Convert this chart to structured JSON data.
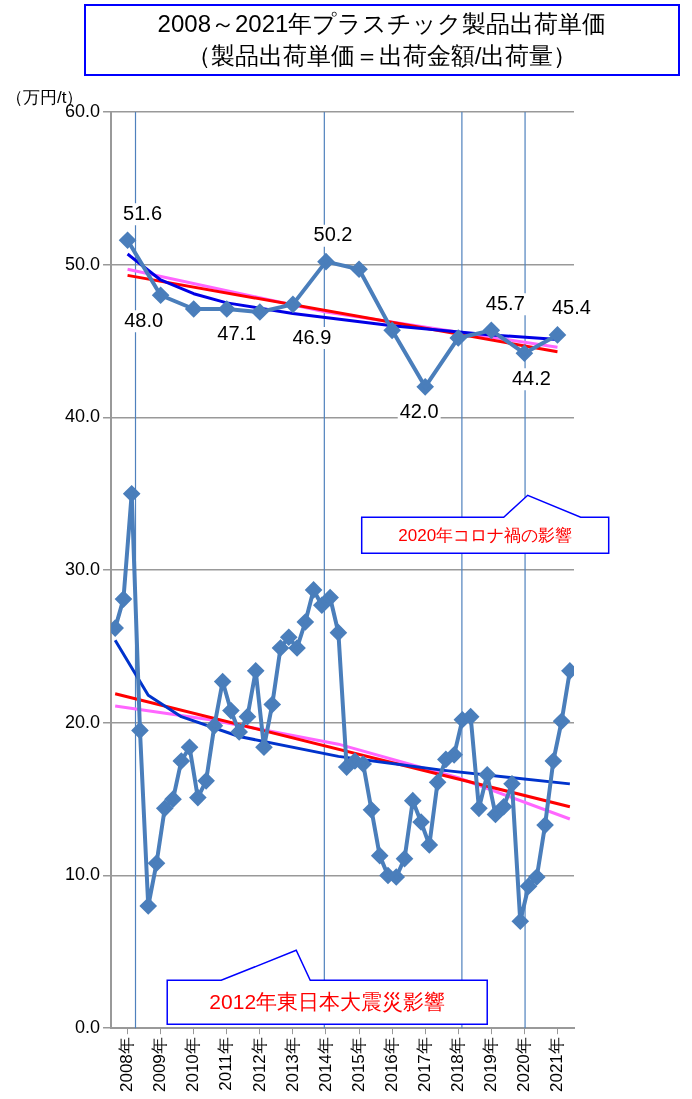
{
  "chart_data": {
    "type": "line",
    "title": "2008～2021年プラスチック製品出荷単価",
    "subtitle": "（製品出荷単価＝出荷金額/出荷量）",
    "ylabel": "（万円/t）",
    "xlim": [
      2008,
      2022
    ],
    "xticks": [
      {
        "value": 2008.5,
        "label": "2008年"
      },
      {
        "value": 2009.5,
        "label": "2009年"
      },
      {
        "value": 2010.5,
        "label": "2010年"
      },
      {
        "value": 2011.5,
        "label": "2011年"
      },
      {
        "value": 2012.5,
        "label": "2012年"
      },
      {
        "value": 2013.5,
        "label": "2013年"
      },
      {
        "value": 2014.5,
        "label": "2014年"
      },
      {
        "value": 2015.5,
        "label": "2015年"
      },
      {
        "value": 2016.5,
        "label": "2016年"
      },
      {
        "value": 2017.5,
        "label": "2017年"
      },
      {
        "value": 2018.5,
        "label": "2018年"
      },
      {
        "value": 2019.5,
        "label": "2019年"
      },
      {
        "value": 2020.5,
        "label": "2020年"
      },
      {
        "value": 2021.5,
        "label": "2021年"
      }
    ],
    "ylim": [
      0,
      60
    ],
    "yticks": [
      {
        "value": 0,
        "label": "0.0"
      },
      {
        "value": 10,
        "label": "10.0"
      },
      {
        "value": 20,
        "label": "20.0"
      },
      {
        "value": 30,
        "label": "30.0"
      },
      {
        "value": 40,
        "label": "40.0"
      },
      {
        "value": 50,
        "label": "50.0"
      },
      {
        "value": 60,
        "label": "60.0"
      }
    ],
    "grid": "y",
    "series": [
      {
        "color": "#4a7ebb",
        "marker": "diamond",
        "x": [
          2008.5,
          2009.5,
          2010.5,
          2011.5,
          2012.5,
          2013.5,
          2014.5,
          2015.5,
          2016.5,
          2017.5,
          2018.5,
          2019.5,
          2020.5,
          2021.5
        ],
        "values": [
          51.6,
          48.0,
          47.1,
          47.1,
          46.9,
          47.4,
          50.2,
          49.7,
          45.7,
          42.0,
          45.2,
          45.7,
          44.2,
          45.4
        ],
        "value_labels": [
          "51.6",
          "48.0",
          null,
          "47.1",
          "46.9",
          null,
          "50.2",
          null,
          null,
          "42.0",
          null,
          "45.7",
          "44.2",
          "45.4"
        ]
      },
      {
        "color": "#4a7ebb",
        "marker": "diamond",
        "x": [
          2008.125,
          2008.375,
          2008.625,
          2008.875,
          2009.125,
          2009.375,
          2009.625,
          2009.875,
          2010.125,
          2010.375,
          2010.625,
          2010.875,
          2011.125,
          2011.375,
          2011.625,
          2011.875,
          2012.125,
          2012.375,
          2012.625,
          2012.875,
          2013.125,
          2013.375,
          2013.625,
          2013.875,
          2014.125,
          2014.375,
          2014.625,
          2014.875,
          2015.125,
          2015.375,
          2015.625,
          2015.875,
          2016.125,
          2016.375,
          2016.625,
          2016.875,
          2017.125,
          2017.375,
          2017.625,
          2017.875,
          2018.125,
          2018.375,
          2018.625,
          2018.875,
          2019.125,
          2019.375,
          2019.625,
          2019.875,
          2020.125,
          2020.375,
          2020.625,
          2020.875,
          2021.125,
          2021.375,
          2021.625,
          2021.875
        ],
        "values": [
          26.2,
          28.1,
          35.0,
          19.5,
          8.0,
          10.8,
          14.4,
          15.0,
          17.5,
          18.4,
          15.1,
          16.2,
          19.8,
          22.7,
          20.8,
          19.4,
          20.4,
          23.4,
          18.4,
          21.2,
          24.9,
          25.6,
          24.9,
          26.6,
          28.7,
          27.7,
          28.2,
          25.9,
          17.1,
          17.5,
          17.3,
          14.3,
          11.3,
          10.0,
          9.9,
          11.1,
          14.9,
          13.5,
          12.0,
          16.1,
          17.6,
          17.9,
          20.2,
          20.4,
          14.4,
          16.6,
          14.0,
          14.5,
          16.0,
          7.0,
          9.3,
          9.9,
          13.3,
          17.5,
          20.1,
          23.4
        ]
      },
      {
        "color": "#0000e6",
        "marker": "none",
        "x": [
          2008.5,
          2009.5,
          2010.5,
          2011.5,
          2013.5,
          2016.5,
          2019.5,
          2021.5
        ],
        "values": [
          50.7,
          49.0,
          48.1,
          47.5,
          46.8,
          46.0,
          45.4,
          45.1
        ]
      },
      {
        "color": "#ff0000",
        "marker": "none",
        "x": [
          2008.5,
          2021.5
        ],
        "values": [
          49.3,
          44.3
        ]
      },
      {
        "color": "#ff66ff",
        "marker": "none",
        "x": [
          2008.5,
          2014.5,
          2021.5
        ],
        "values": [
          49.7,
          46.9,
          44.6
        ]
      },
      {
        "color": "#0033cc",
        "marker": "none",
        "x": [
          2008.125,
          2009.125,
          2010.125,
          2011.875,
          2014.875,
          2018.0,
          2021.875
        ],
        "values": [
          25.4,
          21.8,
          20.4,
          19.1,
          17.8,
          16.9,
          16.0
        ]
      },
      {
        "color": "#ff0000",
        "marker": "none",
        "x": [
          2008.125,
          2021.875
        ],
        "values": [
          21.9,
          14.5
        ]
      },
      {
        "color": "#ff66ff",
        "marker": "none",
        "x": [
          2008.125,
          2011.0,
          2014.875,
          2018.5,
          2021.875
        ],
        "values": [
          21.1,
          20.2,
          18.6,
          16.4,
          13.7
        ]
      }
    ],
    "ref_lines": [
      {
        "axis": "x",
        "value": 2008.74,
        "color": "#4f81bd"
      },
      {
        "axis": "x",
        "value": 2014.45,
        "color": "#4f81bd"
      },
      {
        "axis": "x",
        "value": 2018.61,
        "color": "#4f81bd"
      },
      {
        "axis": "x",
        "value": 2020.52,
        "color": "#4f81bd"
      }
    ],
    "annotations": [
      {
        "text": "2020年コロナ禍の影響",
        "x": 2020.6,
        "y": 34.9
      },
      "2012年東日本大震災影響"
    ]
  }
}
